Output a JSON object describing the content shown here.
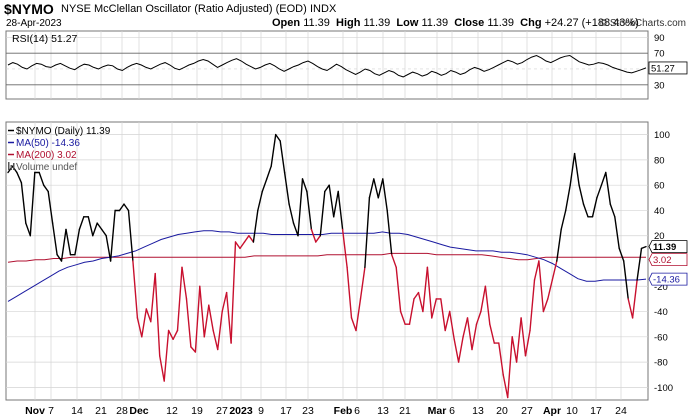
{
  "header": {
    "symbol": "$NYMO",
    "name": "NYSE McClellan Oscillator (Ratio Adjusted) (EOD)",
    "exchange": "INDX",
    "date": "28-Apr-2023",
    "open_label": "Open",
    "open": "11.39",
    "high_label": "High",
    "high": "11.39",
    "low_label": "Low",
    "low": "11.39",
    "close_label": "Close",
    "close": "11.39",
    "chg_label": "Chg",
    "chg": "+24.27 (+188.43%)",
    "brand": "© StockCharts.com"
  },
  "rsi_panel": {
    "label": "RSI(14) 51.27",
    "last_value_label": "51.27",
    "ticks": [
      90,
      70,
      50,
      30
    ],
    "ylim": [
      12,
      98
    ],
    "overbought": 70,
    "oversold": 30
  },
  "legend": [
    {
      "text": "$NYMO (Daily) 11.39",
      "color": "#000000"
    },
    {
      "text": "MA(50) -14.36",
      "color": "#1a1aa0"
    },
    {
      "text": "MA(200) 3.02",
      "color": "#b01030"
    },
    {
      "text": "Volume undef",
      "color": "#555555"
    }
  ],
  "colors": {
    "line_above_ma": "#000000",
    "line_below_ma": "#c8102e",
    "ma50": "#1a1aa0",
    "ma200": "#b01030",
    "grid": "#d4d4d4"
  },
  "chart_data": {
    "type": "line",
    "x_ticks": [
      "Nov",
      "7",
      "14",
      "21",
      "28",
      "Dec",
      "12",
      "19",
      "27",
      "2023",
      "9",
      "17",
      "23",
      "Feb",
      "6",
      "13",
      "21",
      "Mar",
      "6",
      "13",
      "20",
      "27",
      "Apr",
      "10",
      "17",
      "24"
    ],
    "ylim": [
      -110,
      110
    ],
    "y_ticks": [
      100,
      80,
      60,
      40,
      20,
      -20,
      -40,
      -60,
      -80,
      -100
    ],
    "last_value_labels": {
      "close": "11.39",
      "ma200": "3.02",
      "ma50": "-14.36"
    },
    "series": [
      {
        "name": "$NYMO (Daily)",
        "values": [
          70,
          75,
          70,
          62,
          30,
          20,
          70,
          70,
          60,
          55,
          30,
          5,
          0,
          25,
          5,
          5,
          25,
          35,
          35,
          20,
          30,
          25,
          20,
          0,
          40,
          40,
          45,
          40,
          0,
          -45,
          -60,
          -38,
          -48,
          -10,
          -75,
          -95,
          -55,
          -62,
          -55,
          -5,
          -30,
          -68,
          -72,
          -20,
          -60,
          -35,
          -55,
          -70,
          -40,
          -25,
          -65,
          15,
          10,
          15,
          20,
          15,
          40,
          55,
          65,
          75,
          100,
          95,
          70,
          45,
          30,
          20,
          65,
          55,
          25,
          15,
          20,
          55,
          60,
          35,
          55,
          25,
          -5,
          -45,
          -55,
          -30,
          -5,
          50,
          65,
          50,
          65,
          40,
          5,
          -5,
          -40,
          -50,
          -50,
          -30,
          -25,
          -40,
          -5,
          -45,
          -30,
          -30,
          -55,
          -40,
          -62,
          -80,
          -60,
          -45,
          -70,
          -50,
          -40,
          -20,
          -50,
          -65,
          -65,
          -90,
          -108,
          -60,
          -80,
          -45,
          -75,
          -55,
          -15,
          0,
          -40,
          -30,
          -15,
          0,
          25,
          40,
          60,
          85,
          60,
          45,
          35,
          35,
          50,
          60,
          70,
          45,
          35,
          10,
          0,
          -30,
          -45,
          -15,
          10,
          11.39
        ]
      },
      {
        "name": "MA(50)",
        "values": [
          -32,
          -28,
          -24,
          -20,
          -16,
          -12,
          -8,
          -5,
          -3,
          -1,
          0,
          2,
          3,
          4,
          6,
          8,
          11,
          14,
          17,
          19,
          21,
          22,
          23,
          24,
          24,
          23,
          23,
          22,
          22,
          22,
          22,
          21,
          21,
          21,
          21,
          21,
          21,
          21,
          22,
          22,
          22,
          22,
          22,
          22,
          23,
          22,
          22,
          21,
          19,
          17,
          15,
          13,
          11,
          10,
          9,
          8,
          8,
          8,
          7,
          7,
          6,
          5,
          3,
          1,
          -2,
          -6,
          -10,
          -14,
          -16,
          -16,
          -15,
          -15,
          -15,
          -15,
          -15,
          -14.36
        ]
      },
      {
        "name": "MA(200)",
        "values": [
          -1,
          0,
          0,
          1,
          1,
          2,
          2,
          3,
          3,
          3,
          3,
          3,
          3,
          3,
          3,
          3,
          3,
          3,
          3,
          3,
          3,
          3,
          3,
          3,
          3,
          3,
          3,
          4,
          4,
          4,
          4,
          4,
          4,
          4,
          4,
          5,
          5,
          5,
          5,
          5,
          5,
          5,
          6,
          6,
          6,
          6,
          6,
          5,
          5,
          5,
          5,
          5,
          5,
          4,
          3,
          2,
          1,
          1,
          2,
          3,
          3,
          3,
          3,
          3,
          3,
          3,
          3,
          3,
          3,
          3,
          3.02
        ]
      }
    ],
    "rsi": {
      "name": "RSI(14)",
      "values": [
        55,
        58,
        56,
        52,
        50,
        54,
        57,
        56,
        53,
        52,
        55,
        57,
        54,
        51,
        49,
        53,
        56,
        55,
        52,
        50,
        53,
        55,
        54,
        50,
        48,
        52,
        55,
        57,
        55,
        52,
        50,
        53,
        56,
        58,
        55,
        51,
        49,
        52,
        55,
        57,
        60,
        62,
        60,
        56,
        52,
        55,
        58,
        61,
        63,
        60,
        56,
        53,
        50,
        52,
        55,
        57,
        54,
        50,
        47,
        50,
        53,
        55,
        58,
        60,
        57,
        53,
        50,
        48,
        52,
        56,
        53,
        49,
        46,
        43,
        46,
        50,
        48,
        44,
        42,
        45,
        48,
        46,
        42,
        40,
        43,
        46,
        44,
        41,
        43,
        47,
        45,
        42,
        44,
        48,
        46,
        43,
        45,
        49,
        52,
        50,
        47,
        49,
        52,
        55,
        58,
        61,
        59,
        56,
        58,
        62,
        65,
        67,
        64,
        60,
        58,
        61,
        64,
        66,
        67,
        63,
        59,
        57,
        55,
        56,
        58,
        57,
        55,
        52,
        50,
        48,
        46,
        45,
        47,
        49,
        51.27
      ]
    }
  }
}
